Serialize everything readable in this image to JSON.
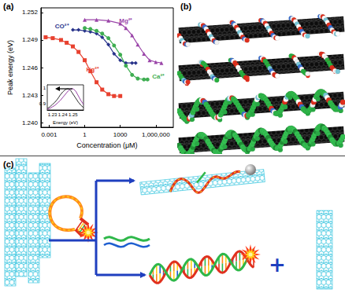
{
  "panel_labels": {
    "a": "(a)",
    "b": "(b)",
    "c": "(c)"
  },
  "chart_data": [
    {
      "type": "line",
      "xlabel": "Concentration (μM)",
      "ylabel": "Peak energy (eV)",
      "log": "x",
      "grid": false,
      "xlim": [
        0.0002,
        30000000
      ],
      "xticks": [
        0.001,
        1,
        1000,
        {
          "value": 1000000,
          "label": "1,000,000"
        }
      ],
      "ylim": [
        1.2395,
        1.2525
      ],
      "yticks": [
        {
          "value": 1.24,
          "label": "1.240"
        },
        {
          "value": 1.243,
          "label": "1.243"
        },
        {
          "value": 1.246,
          "label": "1.246"
        },
        {
          "value": 1.249,
          "label": "1.249"
        },
        {
          "value": 1.252,
          "label": "1.252"
        }
      ],
      "series": [
        {
          "name": "Mg²⁺",
          "color": "#9a44a8",
          "marker": "triangle",
          "x": [
            1,
            10,
            100,
            1000,
            3000,
            10000,
            30000,
            100000,
            300000,
            1000000,
            3000000
          ],
          "values": [
            1.2512,
            1.2512,
            1.2511,
            1.2508,
            1.2503,
            1.2495,
            1.2485,
            1.2475,
            1.2468,
            1.2466,
            1.2465
          ]
        },
        {
          "name": "CO²⁺",
          "color": "#27328a",
          "marker": "diamond",
          "x": [
            0.1,
            0.3,
            1,
            3,
            10,
            30,
            100,
            300,
            1000,
            3000,
            10000,
            20000
          ],
          "values": [
            1.2501,
            1.2501,
            1.25,
            1.2499,
            1.2497,
            1.2493,
            1.2485,
            1.2475,
            1.2468,
            1.2465,
            1.2465,
            1.2465
          ]
        },
        {
          "name": "Ca²⁺",
          "color": "#3fae52",
          "marker": "circle",
          "x": [
            1,
            3,
            10,
            30,
            100,
            300,
            1000,
            3000,
            10000,
            30000,
            100000,
            200000
          ],
          "values": [
            1.2503,
            1.2502,
            1.25,
            1.2497,
            1.2492,
            1.2484,
            1.2474,
            1.2462,
            1.2452,
            1.2448,
            1.2447,
            1.2447
          ]
        },
        {
          "name": "Hg²⁺",
          "color": "#e8412f",
          "marker": "square",
          "x": [
            0.0005,
            0.002,
            0.01,
            0.03,
            0.1,
            0.3,
            1,
            3,
            10,
            30,
            100,
            300,
            1000
          ],
          "values": [
            1.2493,
            1.2492,
            1.249,
            1.2487,
            1.2483,
            1.2477,
            1.2468,
            1.2456,
            1.2444,
            1.2436,
            1.2431,
            1.2429,
            1.2429
          ]
        }
      ]
    },
    {
      "type": "line",
      "xlabel": "Energy (eV)",
      "grid": false,
      "xlim": [
        1.225,
        1.26
      ],
      "xticks": [
        1.23,
        1.24,
        1.25
      ],
      "ylim": [
        0.86,
        1.02
      ],
      "yticks": [
        0.9,
        1
      ],
      "x": [
        1.225,
        1.2275,
        1.23,
        1.2325,
        1.235,
        1.2375,
        1.24,
        1.2425,
        1.245,
        1.2475,
        1.25,
        1.2525,
        1.255,
        1.2575,
        1.26
      ],
      "series": [
        {
          "color": "#333333",
          "values": [
            0.87,
            0.88,
            0.895,
            0.91,
            0.93,
            0.955,
            0.975,
            0.99,
            0.995,
            0.985,
            0.96,
            0.935,
            0.91,
            0.89,
            0.875
          ]
        },
        {
          "color": "#9a44a8",
          "values": [
            0.865,
            0.87,
            0.88,
            0.89,
            0.905,
            0.92,
            0.94,
            0.96,
            0.98,
            0.993,
            0.995,
            0.98,
            0.95,
            0.92,
            0.895
          ]
        }
      ]
    }
  ],
  "diagram_c": {
    "plus": "+"
  }
}
